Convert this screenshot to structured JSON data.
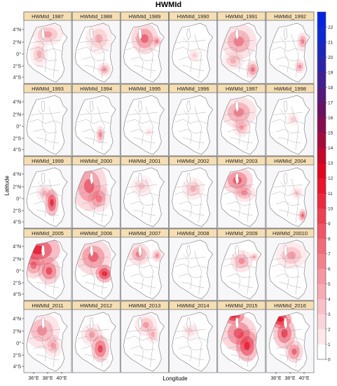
{
  "title": "HWMId",
  "xlabel": "Longitude",
  "ylabel": "Latitude",
  "panel_titles": [
    "HWMId_1987",
    "HWMId_1988",
    "HWMId_1989",
    "HWMId_1990",
    "HWMId_1991",
    "HWMId_1992",
    "HWMId_1993",
    "HWMId_1994",
    "HWMId_1995",
    "HWMId_1996",
    "HWMId_1997",
    "HWMId_1998",
    "HWMId_1999",
    "HWMId_2000",
    "HWMId_2001",
    "HWMId_2002",
    "HWMId_2003",
    "HWMId_2004",
    "HWMId_2005",
    "HWMId_2006",
    "HWMId_2007",
    "HWMId_2008",
    "HWMId_2009",
    "HWMId_20010",
    "HWMId_2011",
    "HWMId_2012",
    "HWMId_2013",
    "HWMId_2014",
    "HWMId_2015",
    "HWMId_2016"
  ],
  "y_ticks": [
    "4°N",
    "2°N",
    "0°",
    "2°S",
    "4°S"
  ],
  "x_ticks": [
    "36°E",
    "38°E",
    "40°E"
  ],
  "colorbar": {
    "ticks": [
      "0",
      "1",
      "2",
      "3",
      "4",
      "5",
      "6",
      "7",
      "8",
      "9",
      "10",
      "11",
      "12",
      "13",
      "14",
      "15",
      "16",
      "17",
      "18",
      "19",
      "20",
      "21",
      "22"
    ],
    "min": 0,
    "max": 23,
    "colors": [
      "#ffffff",
      "#fde7ea",
      "#fbd4d9",
      "#f9c0c7",
      "#f7abb4",
      "#f596a1",
      "#f3808d",
      "#f16b79",
      "#ef5566",
      "#ed3f53",
      "#eb2a40",
      "#e8152d",
      "#e0061e",
      "#c4072a",
      "#a50a3c",
      "#860e4e",
      "#6a1262",
      "#551a7a",
      "#412090",
      "#2c24a6",
      "#1c28bb",
      "#0d2bd0",
      "#0325e0"
    ]
  },
  "panel_bg_color": "#f7f7fa",
  "header_color": "#f5deb3",
  "hot_color": "#e8152d"
}
